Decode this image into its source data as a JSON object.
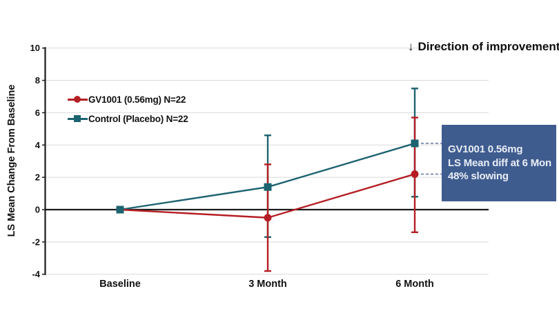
{
  "chart_data": {
    "type": "line",
    "title": "",
    "xlabel": "",
    "ylabel": "LS Mean Change From Baseline",
    "categories": [
      "Baseline",
      "3 Month",
      "6 Month"
    ],
    "ylim": [
      -4,
      10
    ],
    "yticks": [
      10,
      8,
      6,
      4,
      2,
      0,
      -2,
      -4
    ],
    "grid": true,
    "legend_position": "upper-left-inside",
    "series": [
      {
        "name": "GV1001 (0.56mg) N=22",
        "marker": "circle",
        "color": "#b41e23",
        "values": [
          0,
          -0.5,
          2.2
        ],
        "ci_low": [
          null,
          -3.8,
          -1.4
        ],
        "ci_high": [
          null,
          2.8,
          5.7
        ]
      },
      {
        "name": "Control (Placebo) N=22",
        "marker": "square",
        "color": "#1d6370",
        "values": [
          0,
          1.4,
          4.1
        ],
        "ci_low": [
          null,
          -1.7,
          0.8
        ],
        "ci_high": [
          null,
          4.6,
          7.5
        ]
      }
    ]
  },
  "direction_note": {
    "arrow": "↓",
    "text": "Direction of improvement"
  },
  "annotation_box": {
    "lines": [
      "GV1001 0.56mg",
      "LS Mean diff at 6 Mon",
      "48% slowing"
    ],
    "bg_color": "#3f5c8f",
    "text_color": "#e9eef5"
  },
  "colors": {
    "gridline": "#d9d9d9",
    "axis": "#1a1a1a",
    "connector": "#8091b4"
  }
}
